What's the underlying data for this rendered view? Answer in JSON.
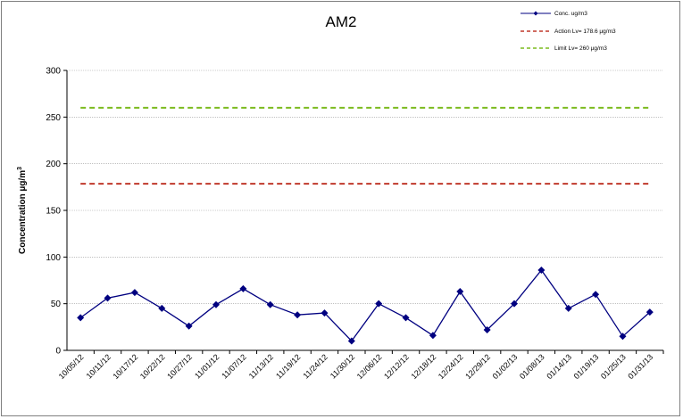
{
  "chart_data": {
    "type": "line",
    "title": "AM2",
    "xlabel": "",
    "ylabel_main": "Concentration  µg/m",
    "ylabel_sup": "3",
    "ylim": [
      0,
      300
    ],
    "yticks": [
      0,
      50,
      100,
      150,
      200,
      250,
      300
    ],
    "grid": true,
    "legend_position": "top-right",
    "categories": [
      "10/05/12",
      "10/11/12",
      "10/17/12",
      "10/22/12",
      "10/27/12",
      "11/01/12",
      "11/07/12",
      "11/13/12",
      "11/19/12",
      "11/24/12",
      "11/30/12",
      "12/06/12",
      "12/12/12",
      "12/18/12",
      "12/24/12",
      "12/29/12",
      "01/02/13",
      "01/08/13",
      "01/14/13",
      "01/19/13",
      "01/25/13",
      "01/31/13"
    ],
    "series": [
      {
        "name": "Conc. ug/m3",
        "color": "#000080",
        "style": "line-marker",
        "values": [
          35,
          56,
          62,
          45,
          26,
          49,
          66,
          49,
          38,
          40,
          10,
          50,
          35,
          16,
          63,
          22,
          50,
          86,
          45,
          60,
          15,
          41
        ]
      },
      {
        "name": "Action Lv= 178.6 µg/m3",
        "color": "#c0392b",
        "style": "dashed",
        "value": 178.6
      },
      {
        "name": "Limit Lv= 260 µg/m3",
        "color": "#7cbb1e",
        "style": "dashed",
        "value": 260
      }
    ]
  }
}
